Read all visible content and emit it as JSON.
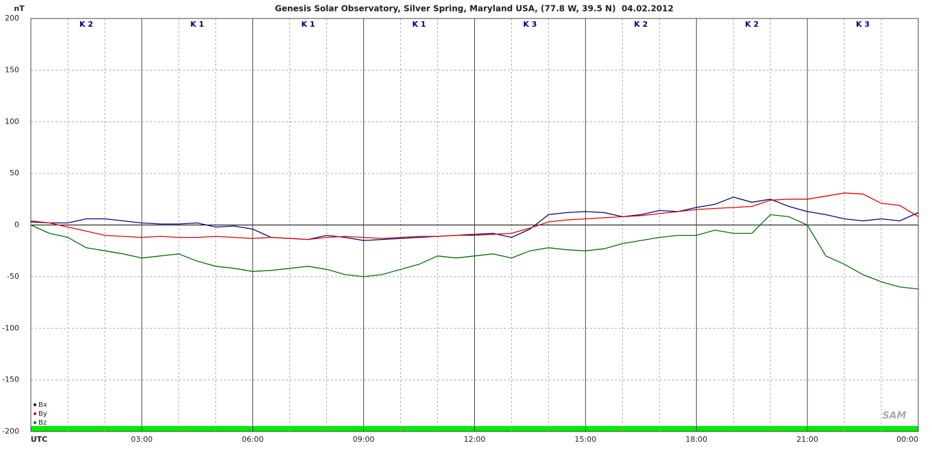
{
  "chart_data": {
    "type": "line",
    "title": "Genesis Solar Observatory, Silver Spring, Maryland USA, (77.8 W, 39.5 N)  04.02.2012",
    "y_label": "nT",
    "logo": "SAM",
    "k_labels": [
      "K 2",
      "K 1",
      "K 1",
      "K 1",
      "K 3",
      "K 2",
      "K 2",
      "K 3"
    ],
    "x": [
      0,
      0.5,
      1,
      1.5,
      2,
      2.5,
      3,
      3.5,
      4,
      4.5,
      5,
      5.5,
      6,
      6.5,
      7,
      7.5,
      8,
      8.5,
      9,
      9.5,
      10,
      10.5,
      11,
      11.5,
      12,
      12.5,
      13,
      13.5,
      14,
      14.5,
      15,
      15.5,
      16,
      16.5,
      17,
      17.5,
      18,
      18.5,
      19,
      19.5,
      20,
      20.5,
      21,
      21.5,
      22,
      22.5,
      23,
      23.5,
      24
    ],
    "series": [
      {
        "name": "Bx",
        "color": "#000080",
        "values": [
          3,
          2,
          2,
          6,
          6,
          4,
          2,
          1,
          1,
          2,
          -2,
          -1,
          -4,
          -12,
          -13,
          -14,
          -10,
          -12,
          -15,
          -14,
          -13,
          -12,
          -11,
          -10,
          -9,
          -8,
          -12,
          -4,
          10,
          12,
          13,
          12,
          8,
          10,
          14,
          13,
          17,
          20,
          27,
          22,
          25,
          18,
          13,
          10,
          6,
          4,
          6,
          4,
          12
        ]
      },
      {
        "name": "By",
        "color": "#e00000",
        "values": [
          4,
          2,
          -2,
          -6,
          -10,
          -11,
          -12,
          -11,
          -12,
          -12,
          -11,
          -12,
          -13,
          -12,
          -13,
          -14,
          -12,
          -11,
          -12,
          -13,
          -12,
          -11,
          -11,
          -10,
          -10,
          -9,
          -8,
          -3,
          3,
          5,
          6,
          7,
          8,
          9,
          11,
          13,
          15,
          16,
          17,
          18,
          24,
          25,
          25,
          28,
          31,
          30,
          21,
          19,
          8
        ]
      },
      {
        "name": "Bz",
        "color": "#007000",
        "values": [
          0,
          -8,
          -12,
          -22,
          -25,
          -28,
          -32,
          -30,
          -28,
          -35,
          -40,
          -42,
          -45,
          -44,
          -42,
          -40,
          -43,
          -48,
          -50,
          -48,
          -43,
          -38,
          -30,
          -32,
          -30,
          -28,
          -32,
          -25,
          -22,
          -24,
          -25,
          -23,
          -18,
          -15,
          -12,
          -10,
          -10,
          -5,
          -8,
          -8,
          10,
          8,
          0,
          -30,
          -38,
          -48,
          -55,
          -60,
          -62
        ]
      }
    ],
    "xlim": [
      0,
      24
    ],
    "xticks": [
      {
        "value": 0,
        "label": "UTC"
      },
      {
        "value": 3,
        "label": "03:00"
      },
      {
        "value": 6,
        "label": "06:00"
      },
      {
        "value": 9,
        "label": "09:00"
      },
      {
        "value": 12,
        "label": "12:00"
      },
      {
        "value": 15,
        "label": "15:00"
      },
      {
        "value": 18,
        "label": "18:00"
      },
      {
        "value": 21,
        "label": "21:00"
      },
      {
        "value": 24,
        "label": "00:00"
      }
    ],
    "minor_xticks": [
      1,
      2,
      4,
      5,
      7,
      8,
      10,
      11,
      13,
      14,
      16,
      17,
      19,
      20,
      22,
      23
    ],
    "ylim": [
      -200,
      200
    ],
    "yticks": [
      -200,
      -150,
      -100,
      -50,
      0,
      50,
      100,
      150,
      200
    ],
    "grid": true
  }
}
